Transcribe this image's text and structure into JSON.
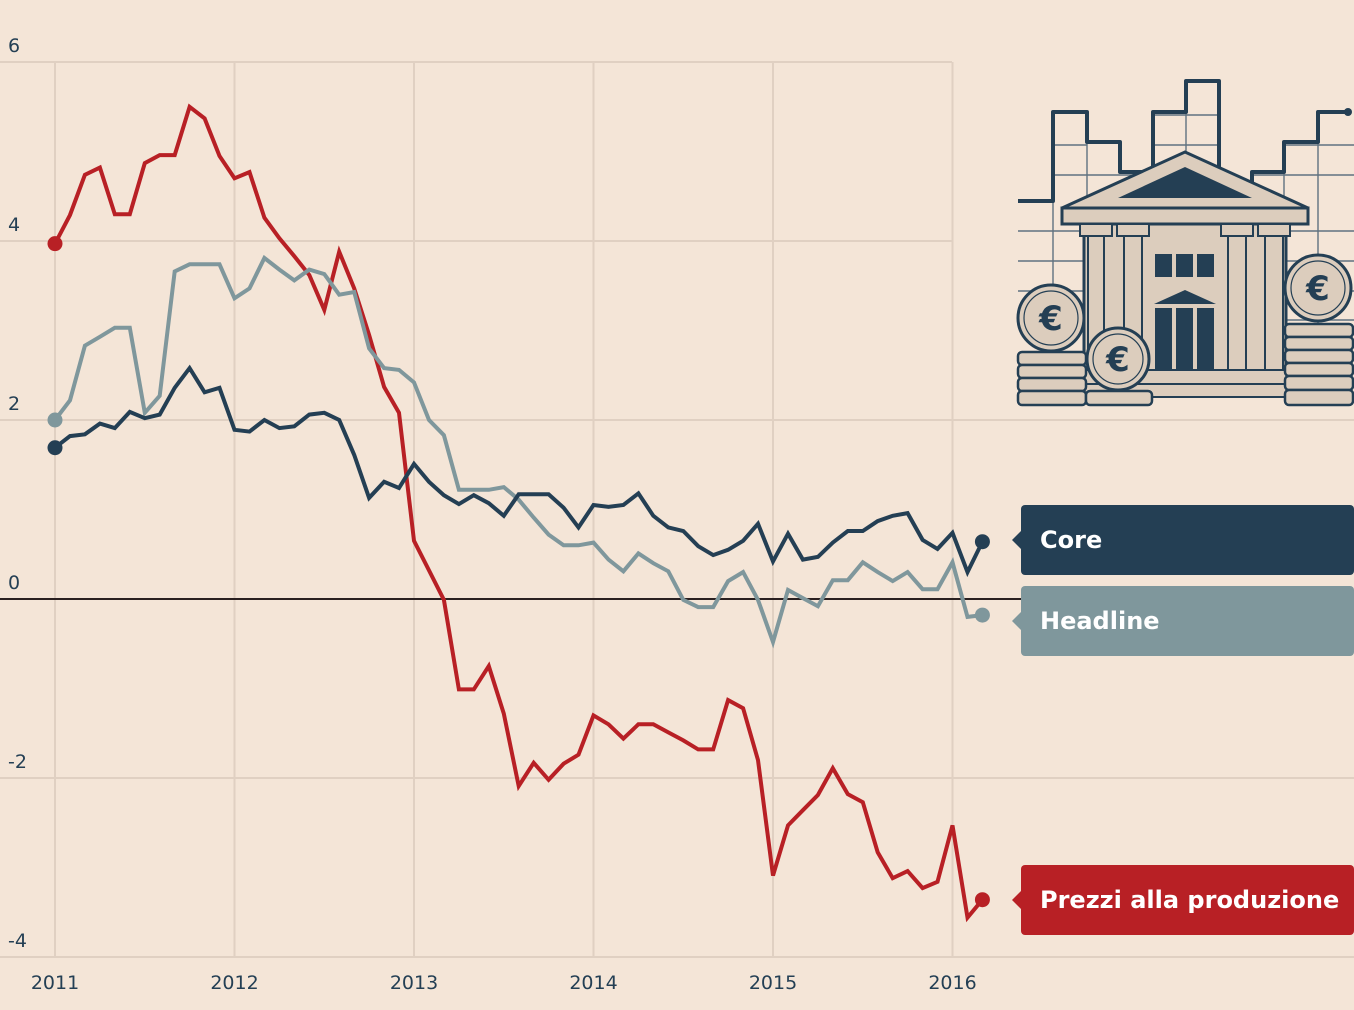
{
  "chart_data": {
    "type": "line",
    "title": "",
    "xlabel": "",
    "ylabel": "",
    "xlim": [
      2011.0,
      2017.5
    ],
    "ylim": [
      -4.2,
      6.5
    ],
    "x_ticks": [
      2011,
      2012,
      2013,
      2014,
      2015,
      2016
    ],
    "x_tick_labels": [
      "2011",
      "2012",
      "2013",
      "2014",
      "2015",
      "2016"
    ],
    "y_ticks": [
      6,
      4,
      2,
      0,
      -2,
      -4
    ],
    "y_tick_labels": [
      "6",
      "4",
      "2",
      "0",
      "-2",
      "-4"
    ],
    "grid": true,
    "x_start": 2011.0,
    "x_step_months": 1,
    "series": [
      {
        "name": "Prezzi alla produzione",
        "color": "#b82025",
        "values": [
          3.97,
          4.29,
          4.74,
          4.82,
          4.3,
          4.3,
          4.87,
          4.96,
          4.96,
          5.5,
          5.37,
          4.95,
          4.7,
          4.77,
          4.26,
          4.03,
          3.83,
          3.62,
          3.23,
          3.88,
          3.47,
          2.95,
          2.37,
          2.08,
          0.65,
          0.32,
          -0.01,
          -1.01,
          -1.01,
          -0.75,
          -1.28,
          -2.09,
          -1.83,
          -2.02,
          -1.84,
          -1.74,
          -1.3,
          -1.4,
          -1.56,
          -1.4,
          -1.4,
          -1.49,
          -1.58,
          -1.68,
          -1.68,
          -1.13,
          -1.22,
          -1.8,
          -3.09,
          -2.53,
          -2.36,
          -2.19,
          -1.89,
          -2.18,
          -2.27,
          -2.83,
          -3.12,
          -3.04,
          -3.23,
          -3.16,
          -2.53,
          -3.56,
          -3.36
        ]
      },
      {
        "name": "Headline",
        "color": "#7f979c",
        "values": [
          2.0,
          2.22,
          2.83,
          2.93,
          3.03,
          3.03,
          2.08,
          2.27,
          3.66,
          3.74,
          3.74,
          3.74,
          3.36,
          3.47,
          3.81,
          3.68,
          3.56,
          3.68,
          3.63,
          3.4,
          3.43,
          2.8,
          2.58,
          2.56,
          2.42,
          2.0,
          1.83,
          1.22,
          1.22,
          1.22,
          1.25,
          1.11,
          0.91,
          0.72,
          0.6,
          0.6,
          0.63,
          0.44,
          0.31,
          0.51,
          0.4,
          0.31,
          -0.01,
          -0.09,
          -0.09,
          0.2,
          0.3,
          -0.01,
          -0.48,
          0.1,
          0.01,
          -0.08,
          0.21,
          0.21,
          0.41,
          0.3,
          0.2,
          0.3,
          0.11,
          0.11,
          0.41,
          -0.2,
          -0.18
        ]
      },
      {
        "name": "Core",
        "color": "#243f54",
        "values": [
          1.69,
          1.82,
          1.84,
          1.96,
          1.91,
          2.09,
          2.02,
          2.06,
          2.36,
          2.58,
          2.31,
          2.36,
          1.89,
          1.87,
          2.0,
          1.91,
          1.93,
          2.06,
          2.08,
          2.0,
          1.61,
          1.13,
          1.31,
          1.24,
          1.51,
          1.31,
          1.16,
          1.06,
          1.16,
          1.07,
          0.93,
          1.17,
          1.17,
          1.17,
          1.02,
          0.8,
          1.05,
          1.03,
          1.05,
          1.18,
          0.93,
          0.8,
          0.76,
          0.59,
          0.49,
          0.55,
          0.65,
          0.84,
          0.42,
          0.73,
          0.44,
          0.47,
          0.63,
          0.76,
          0.76,
          0.87,
          0.93,
          0.96,
          0.66,
          0.56,
          0.74,
          0.3,
          0.64
        ]
      }
    ],
    "legend": [
      {
        "label": "Core",
        "color": "#243f54"
      },
      {
        "label": "Headline",
        "color": "#7f979c"
      },
      {
        "label": "Prezzi alla produzione",
        "color": "#b82025"
      }
    ],
    "legend_placement": "right"
  },
  "colors": {
    "background": "#f4e5d7",
    "grid": "#e0d0c2",
    "zero_line": "#2a2020",
    "text": "#243f54"
  },
  "illustration": {
    "icon": "bank-euro-icon"
  }
}
